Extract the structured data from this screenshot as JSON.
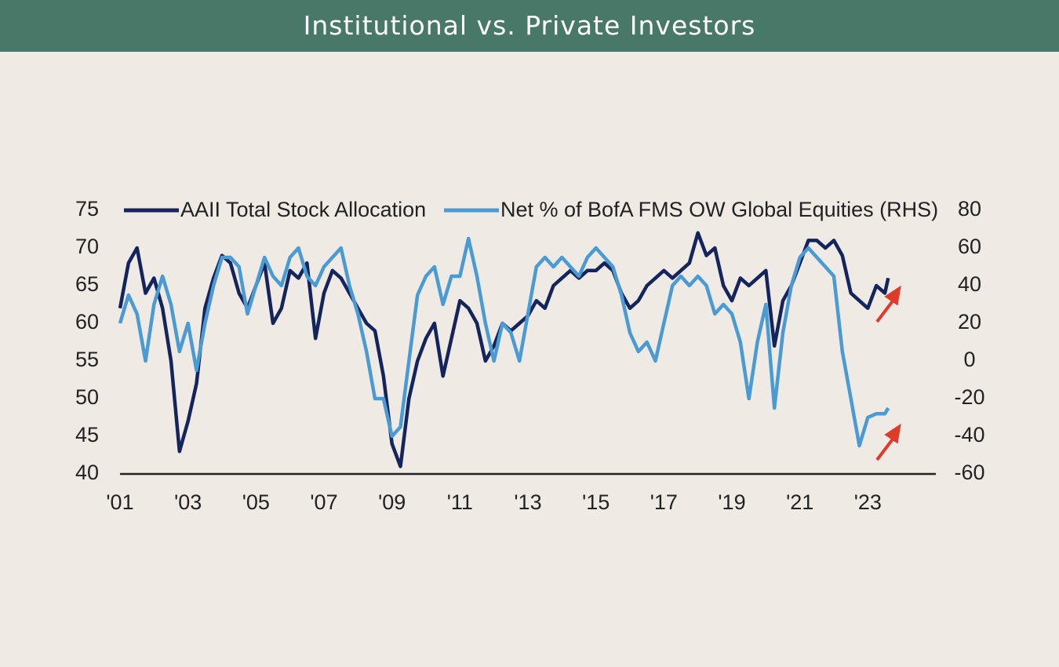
{
  "header": {
    "title": "Institutional vs. Private Investors"
  },
  "chart_data": {
    "type": "line",
    "x": [
      2001,
      2001.25,
      2001.5,
      2001.75,
      2002,
      2002.25,
      2002.5,
      2002.75,
      2003,
      2003.25,
      2003.5,
      2003.75,
      2004,
      2004.25,
      2004.5,
      2004.75,
      2005,
      2005.25,
      2005.5,
      2005.75,
      2006,
      2006.25,
      2006.5,
      2006.75,
      2007,
      2007.25,
      2007.5,
      2007.75,
      2008,
      2008.25,
      2008.5,
      2008.75,
      2009,
      2009.25,
      2009.5,
      2009.75,
      2010,
      2010.25,
      2010.5,
      2010.75,
      2011,
      2011.25,
      2011.5,
      2011.75,
      2012,
      2012.25,
      2012.5,
      2012.75,
      2013,
      2013.25,
      2013.5,
      2013.75,
      2014,
      2014.25,
      2014.5,
      2014.75,
      2015,
      2015.25,
      2015.5,
      2015.75,
      2016,
      2016.25,
      2016.5,
      2016.75,
      2017,
      2017.25,
      2017.5,
      2017.75,
      2018,
      2018.25,
      2018.5,
      2018.75,
      2019,
      2019.25,
      2019.5,
      2019.75,
      2020,
      2020.25,
      2020.5,
      2020.75,
      2021,
      2021.25,
      2021.5,
      2021.75,
      2022,
      2022.25,
      2022.5,
      2022.75,
      2023,
      2023.25,
      2023.5,
      2023.6
    ],
    "series": [
      {
        "name": "AAII Total Stock Allocation",
        "color": "#14245c",
        "values": [
          62,
          68,
          70,
          64,
          66,
          62,
          55,
          43,
          47,
          52,
          62,
          66,
          69,
          68,
          64,
          62,
          65,
          68,
          60,
          62,
          67,
          66,
          68,
          58,
          64,
          67,
          66,
          64,
          62,
          60,
          59,
          53,
          44,
          41,
          50,
          55,
          58,
          60,
          53,
          58,
          63,
          62,
          60,
          55,
          57,
          60,
          59,
          60,
          61,
          63,
          62,
          65,
          66,
          67,
          66,
          67,
          67,
          68,
          67,
          64,
          62,
          63,
          65,
          66,
          67,
          66,
          67,
          68,
          72,
          69,
          70,
          65,
          63,
          66,
          65,
          66,
          67,
          57,
          63,
          65,
          68,
          71,
          71,
          70,
          71,
          69,
          64,
          63,
          62,
          65,
          64,
          66
        ]
      },
      {
        "name": "Net % of BofA FMS OW Global Equities (RHS)",
        "color": "#4a9ad4",
        "axis": "y2",
        "values": [
          20,
          35,
          25,
          0,
          30,
          45,
          30,
          5,
          20,
          -5,
          20,
          40,
          55,
          55,
          50,
          25,
          40,
          55,
          45,
          40,
          55,
          60,
          45,
          40,
          50,
          55,
          60,
          40,
          25,
          5,
          -20,
          -20,
          -40,
          -35,
          0,
          35,
          45,
          50,
          30,
          45,
          45,
          65,
          45,
          20,
          0,
          20,
          15,
          0,
          25,
          50,
          55,
          50,
          55,
          50,
          45,
          55,
          60,
          55,
          50,
          35,
          15,
          5,
          10,
          0,
          20,
          40,
          45,
          40,
          45,
          40,
          25,
          30,
          25,
          10,
          -20,
          10,
          30,
          -25,
          15,
          40,
          55,
          60,
          55,
          50,
          45,
          5,
          -20,
          -45,
          -30,
          -28,
          -28,
          -25
        ]
      }
    ],
    "xlim": [
      2001,
      2025
    ],
    "xticks": [
      {
        "value": 2001,
        "label": "'01"
      },
      {
        "value": 2003,
        "label": "'03"
      },
      {
        "value": 2005,
        "label": "'05"
      },
      {
        "value": 2007,
        "label": "'07"
      },
      {
        "value": 2009,
        "label": "'09"
      },
      {
        "value": 2011,
        "label": "'11"
      },
      {
        "value": 2013,
        "label": "'13"
      },
      {
        "value": 2015,
        "label": "'15"
      },
      {
        "value": 2017,
        "label": "'17"
      },
      {
        "value": 2019,
        "label": "'19"
      },
      {
        "value": 2021,
        "label": "'21"
      },
      {
        "value": 2023,
        "label": "'23"
      }
    ],
    "ylim": [
      40,
      75
    ],
    "yticks": [
      40,
      45,
      50,
      55,
      60,
      65,
      70,
      75
    ],
    "y2lim": [
      -60,
      80
    ],
    "y2ticks": [
      -60,
      -40,
      -20,
      0,
      20,
      40,
      60,
      80
    ],
    "grid": false
  }
}
